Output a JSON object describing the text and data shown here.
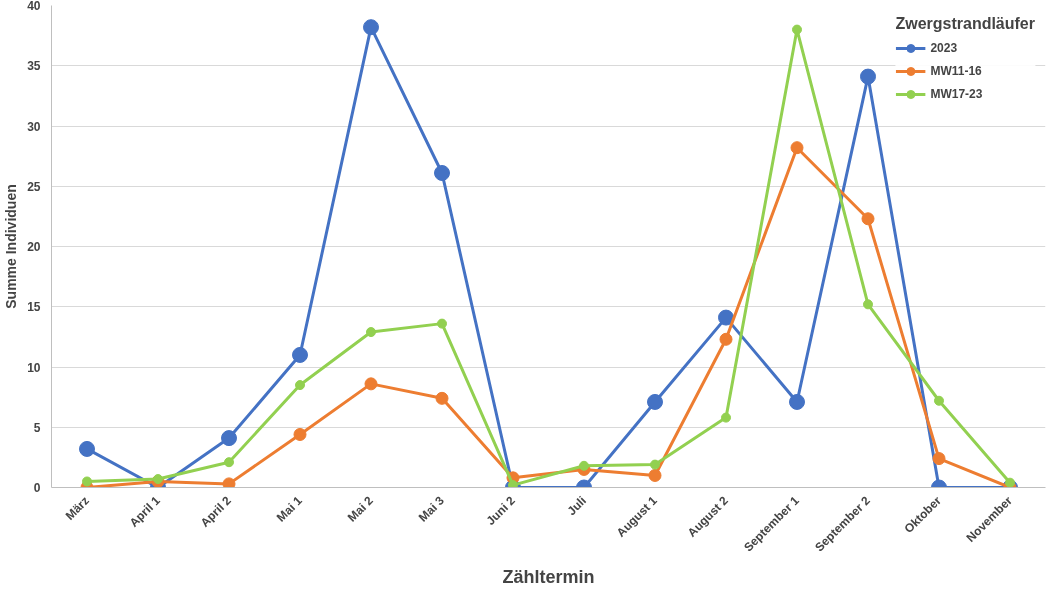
{
  "chart_data": {
    "type": "line",
    "xlabel": "Zähltermin",
    "ylabel": "Summe Individuen",
    "legend_title": "Zwergstrandläufer",
    "categories": [
      "März",
      "April 1",
      "April 2",
      "Mai 1",
      "Mai 2",
      "Mai 3",
      "Juni 2",
      "Juli",
      "August 1",
      "August 2",
      "September 1",
      "September 2",
      "Oktober",
      "November"
    ],
    "series": [
      {
        "name": "2023",
        "color": "#4472c4",
        "values": [
          3.2,
          0,
          4.1,
          11,
          38.2,
          26.1,
          0,
          0,
          7.1,
          14.1,
          7.1,
          34.1,
          0,
          0
        ]
      },
      {
        "name": "MW11-16",
        "color": "#ed7d31",
        "values": [
          0,
          0.5,
          0.3,
          4.4,
          8.6,
          7.4,
          0.8,
          1.5,
          1.0,
          12.3,
          28.2,
          22.3,
          2.4,
          0
        ]
      },
      {
        "name": "MW17-23",
        "color": "#92d050",
        "values": [
          0.5,
          0.7,
          2.1,
          8.5,
          12.9,
          13.6,
          0.2,
          1.8,
          1.9,
          5.8,
          38,
          15.2,
          7.2,
          0.4
        ]
      }
    ],
    "ylim": [
      0,
      40
    ],
    "yticks": [
      0,
      5,
      10,
      15,
      20,
      25,
      30,
      35,
      40
    ],
    "grid": "y",
    "legend": "top right",
    "marker": "circle",
    "line_style": "solid"
  }
}
